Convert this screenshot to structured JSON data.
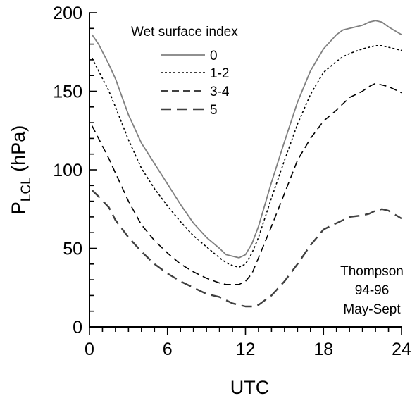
{
  "chart_data": {
    "type": "line",
    "title": "",
    "xlabel": "UTC",
    "ylabel": {
      "main": "P",
      "subscript": "LCL",
      "suffix": " (hPa)"
    },
    "xlim": [
      0,
      24
    ],
    "ylim": [
      0,
      200
    ],
    "xticks": [
      0,
      6,
      12,
      18,
      24
    ],
    "yticks": [
      0,
      50,
      100,
      150,
      200
    ],
    "x_minor_step": 1,
    "y_minor_step": 10,
    "grid": false,
    "legend": {
      "title": "Wet surface index",
      "position": "top-left"
    },
    "annotation": [
      "Thompson",
      "94-96",
      "May-Sept"
    ],
    "x": [
      0.2,
      0.7,
      1.5,
      2.0,
      3.0,
      4.0,
      5.0,
      6.0,
      7.0,
      8.0,
      9.0,
      10.0,
      10.5,
      11.0,
      11.5,
      12.0,
      12.5,
      13.0,
      14.0,
      15.0,
      16.0,
      17.0,
      18.0,
      19.0,
      19.5,
      20.0,
      21.0,
      21.5,
      22.0,
      22.5,
      23.0,
      24.0
    ],
    "series": [
      {
        "name": "0",
        "style": "solid",
        "color": "#808080",
        "width": 1.8,
        "values": [
          186,
          180,
          167,
          158,
          135,
          117,
          104,
          91,
          78,
          66,
          57,
          50,
          46,
          45,
          44,
          46,
          53,
          64,
          92,
          118,
          143,
          163,
          177,
          186,
          189,
          190,
          192,
          194,
          195,
          194,
          191,
          186
        ]
      },
      {
        "name": "1-2",
        "style": "dotted",
        "color": "#000000",
        "width": 1.6,
        "values": [
          171,
          163,
          150,
          140,
          119,
          101,
          88,
          77,
          67,
          58,
          51,
          44,
          41,
          39,
          38,
          40,
          47,
          57,
          82,
          106,
          129,
          148,
          162,
          169,
          172,
          174,
          177,
          178,
          179,
          179,
          178,
          176
        ]
      },
      {
        "name": "3-4",
        "style": "dashed",
        "color": "#000000",
        "width": 1.6,
        "values": [
          128,
          120,
          107,
          98,
          80,
          65,
          55,
          47,
          40,
          35,
          31,
          28,
          27,
          27,
          27,
          29,
          34,
          44,
          64,
          85,
          106,
          120,
          131,
          138,
          142,
          146,
          150,
          153,
          155,
          154,
          153,
          149
        ]
      },
      {
        "name": "5",
        "style": "longdash",
        "color": "#404040",
        "width": 2.4,
        "values": [
          87,
          83,
          76,
          68,
          57,
          48,
          40,
          34,
          29,
          25,
          21,
          19,
          17,
          15,
          14,
          13,
          13,
          14,
          20,
          29,
          40,
          52,
          62,
          66,
          68,
          70,
          71,
          72,
          74,
          75,
          74,
          69
        ]
      }
    ]
  }
}
